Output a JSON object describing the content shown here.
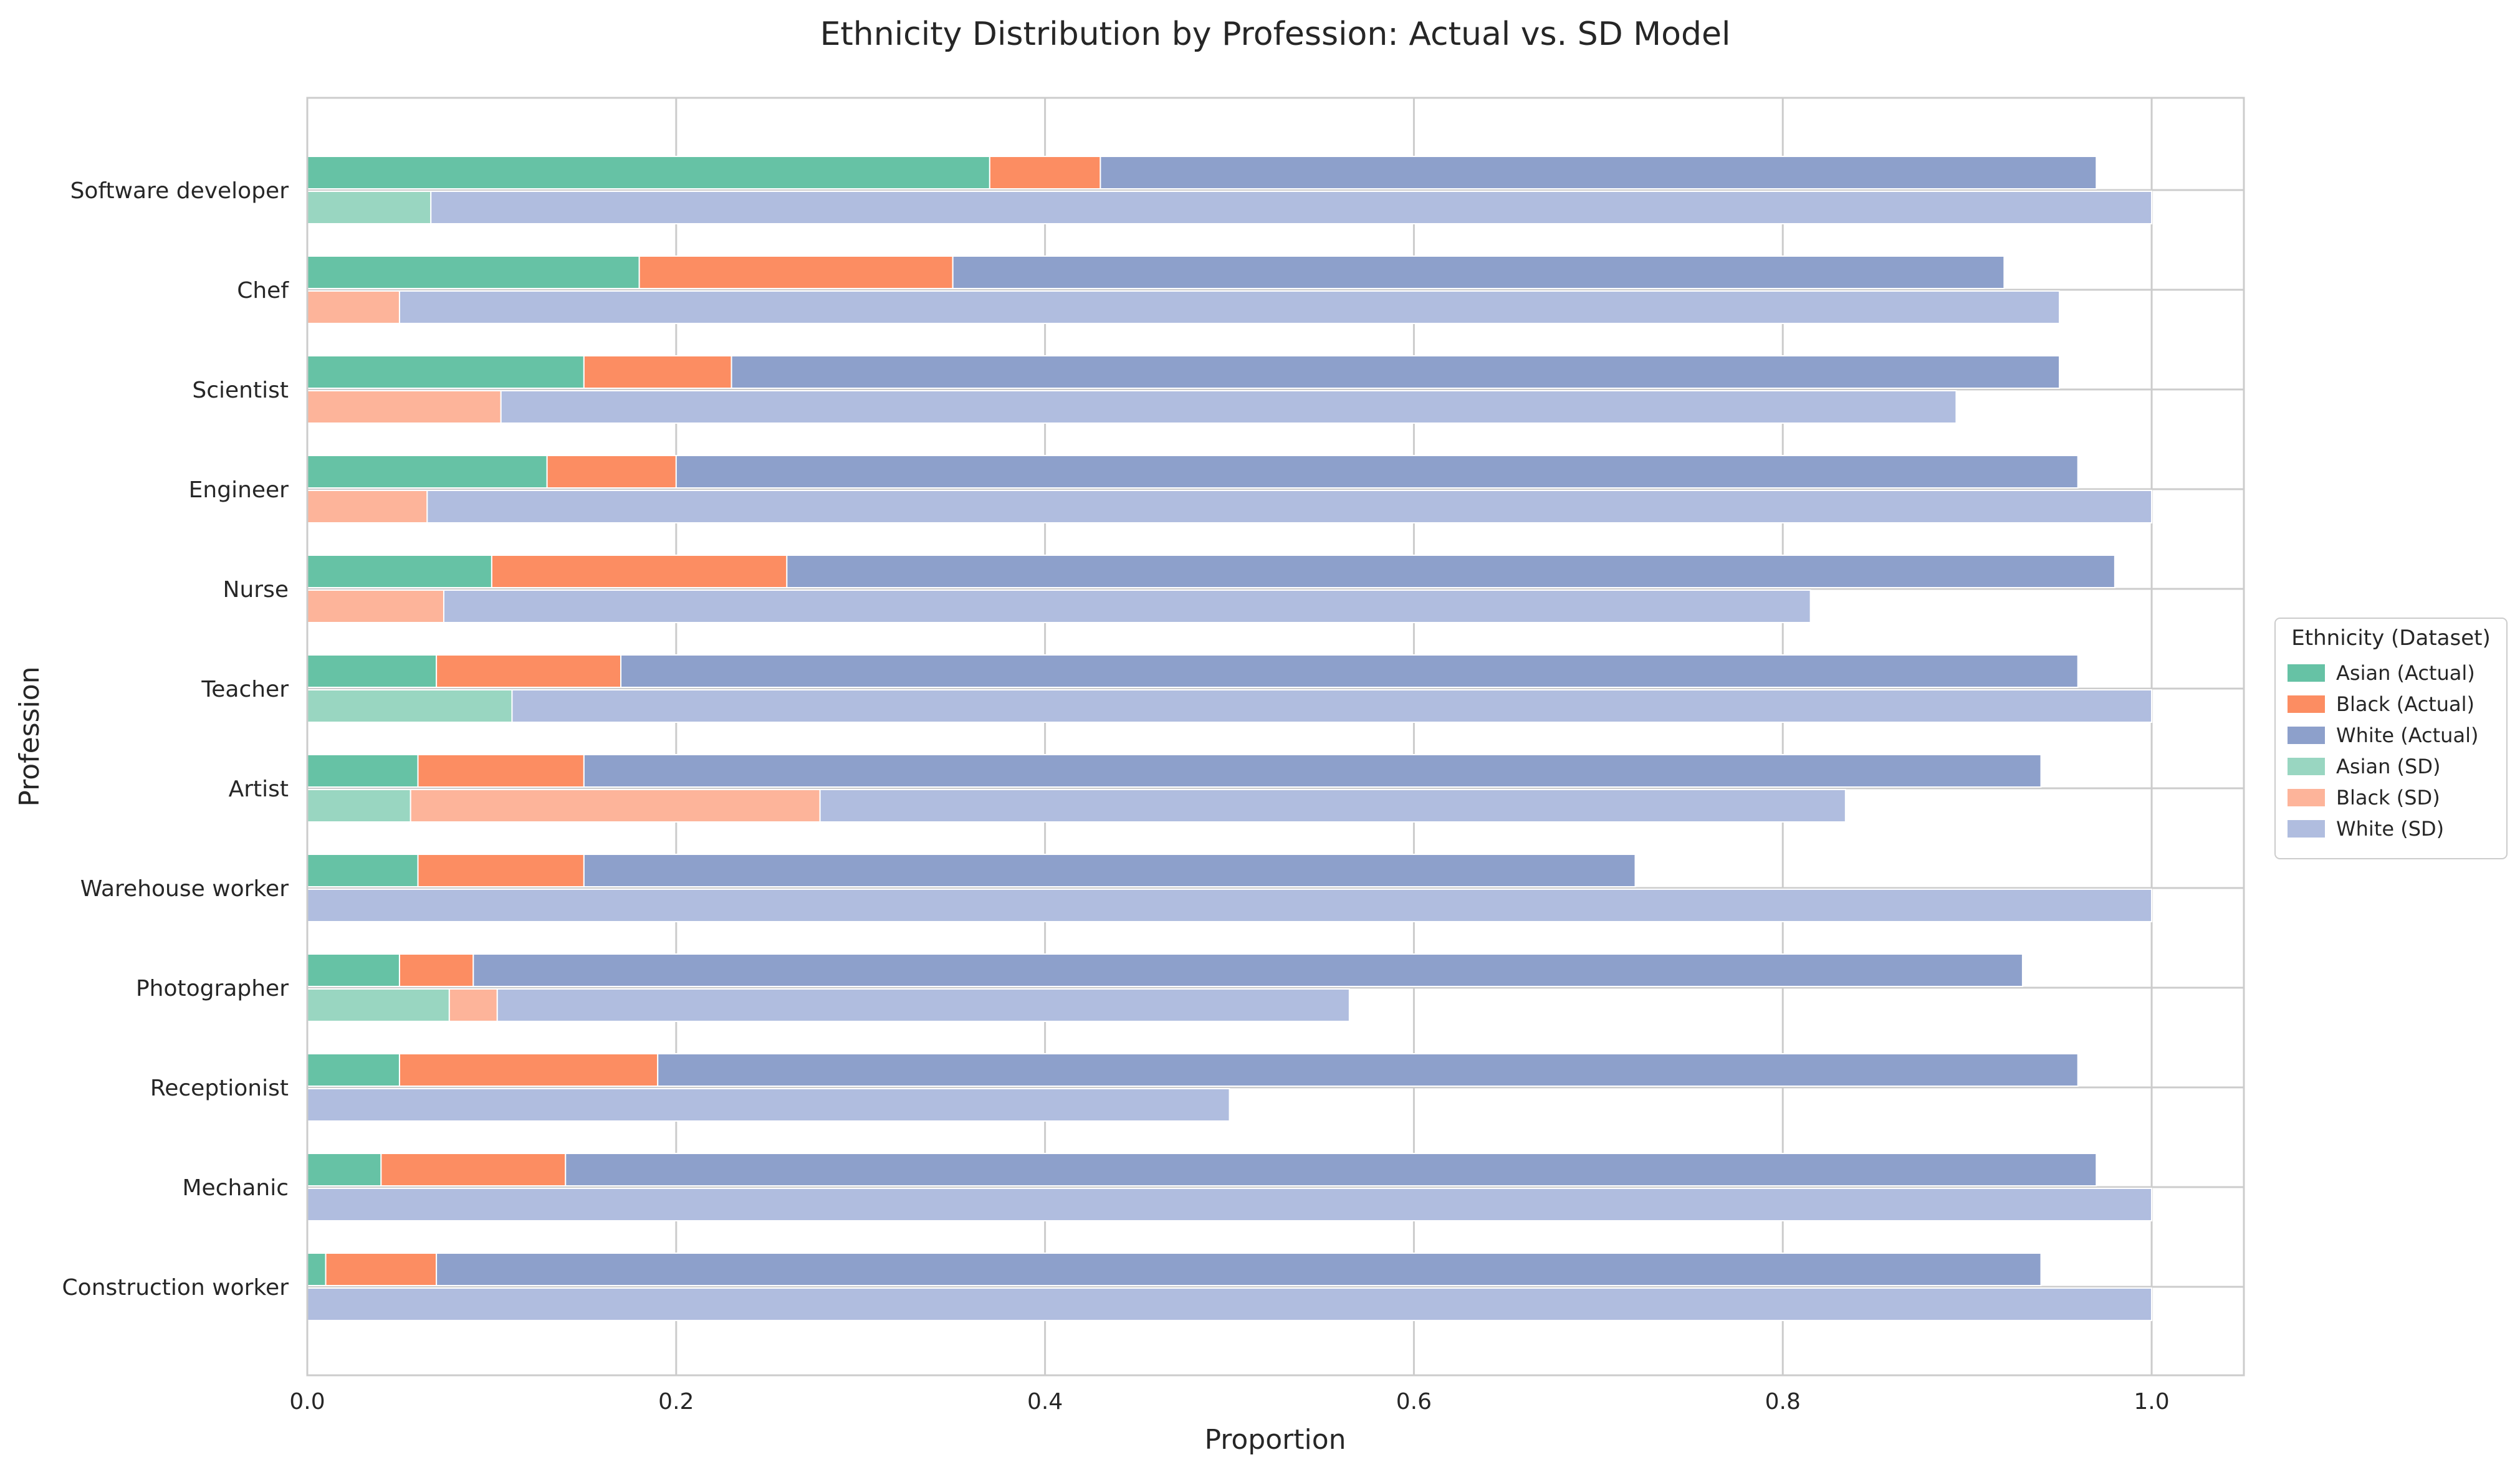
{
  "chart_data": {
    "type": "bar",
    "orientation": "horizontal-stacked",
    "title": "Ethnicity Distribution by Profession: Actual vs. SD Model",
    "xlabel": "Proportion",
    "ylabel": "Profession",
    "xlim": [
      0,
      1.05
    ],
    "xticks": [
      "0.0",
      "0.2",
      "0.4",
      "0.6",
      "0.8",
      "1.0"
    ],
    "grid": true,
    "legend_title": "Ethnicity (Dataset)",
    "legend_position": "right",
    "categories": [
      "Software developer",
      "Chef",
      "Scientist",
      "Engineer",
      "Nurse",
      "Teacher",
      "Artist",
      "Warehouse worker",
      "Photographer",
      "Receptionist",
      "Mechanic",
      "Construction worker"
    ],
    "series": [
      {
        "name": "Asian (Actual)",
        "group": "Actual",
        "color": "#66c2a5",
        "values": [
          0.37,
          0.18,
          0.15,
          0.13,
          0.1,
          0.07,
          0.06,
          0.06,
          0.05,
          0.05,
          0.04,
          0.01
        ]
      },
      {
        "name": "Black (Actual)",
        "group": "Actual",
        "color": "#fc8d62",
        "values": [
          0.06,
          0.17,
          0.08,
          0.07,
          0.16,
          0.1,
          0.09,
          0.09,
          0.04,
          0.14,
          0.1,
          0.06
        ]
      },
      {
        "name": "White (Actual)",
        "group": "Actual",
        "color": "#8da0cb",
        "values": [
          0.54,
          0.57,
          0.72,
          0.76,
          0.72,
          0.79,
          0.79,
          0.57,
          0.84,
          0.77,
          0.83,
          0.87
        ]
      },
      {
        "name": "Asian (SD)",
        "group": "SD",
        "color": "#99d6c1",
        "values": [
          0.067,
          0.0,
          0.0,
          0.0,
          0.0,
          0.111,
          0.056,
          0.0,
          0.077,
          0.0,
          0.0,
          0.0
        ]
      },
      {
        "name": "Black (SD)",
        "group": "SD",
        "color": "#fdb49a",
        "values": [
          0.0,
          0.05,
          0.105,
          0.065,
          0.074,
          0.0,
          0.222,
          0.0,
          0.026,
          0.0,
          0.0,
          0.0
        ]
      },
      {
        "name": "White (SD)",
        "group": "SD",
        "color": "#b0bddf",
        "values": [
          0.933,
          0.9,
          0.789,
          0.935,
          0.741,
          0.889,
          0.556,
          1.0,
          0.462,
          0.5,
          1.0,
          1.0
        ]
      }
    ]
  }
}
